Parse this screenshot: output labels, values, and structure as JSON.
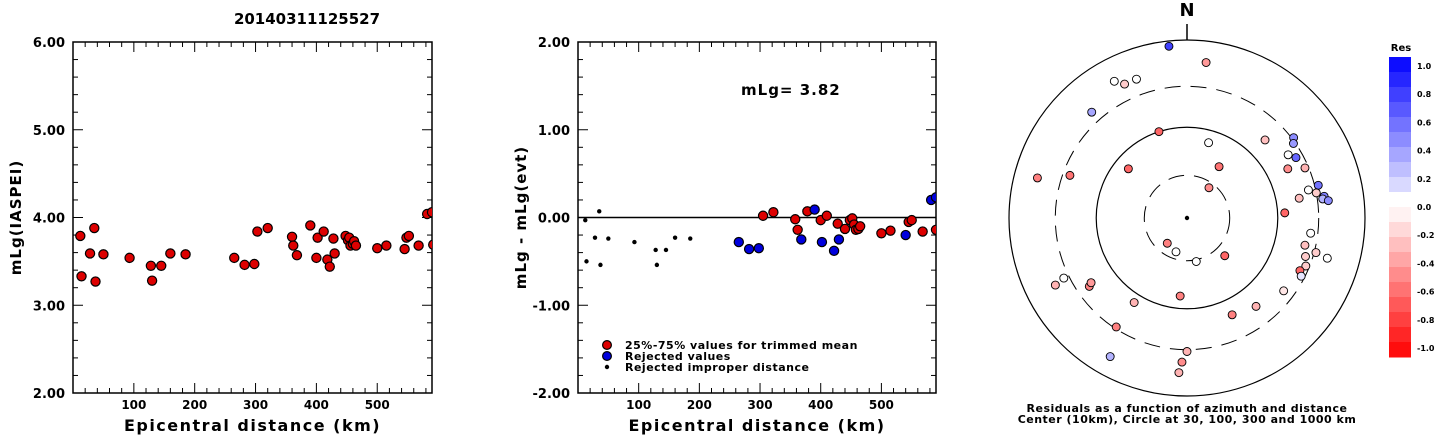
{
  "title": "20140311125527",
  "chart_data": [
    {
      "type": "scatter",
      "id": "magnitude-vs-distance",
      "xlabel": "Epicentral distance (km)",
      "ylabel": "mLg(IASPEI)",
      "xlim": [
        0,
        590
      ],
      "ylim": [
        2.0,
        6.0
      ],
      "xticks": [
        100,
        200,
        300,
        400,
        500
      ],
      "yticks": [
        "2.00",
        "3.00",
        "4.00",
        "5.00",
        "6.00"
      ],
      "series": [
        {
          "color": "#dd0000",
          "points": [
            [
              12,
              3.79
            ],
            [
              14,
              3.33
            ],
            [
              28,
              3.59
            ],
            [
              35,
              3.88
            ],
            [
              37,
              3.27
            ],
            [
              50,
              3.58
            ],
            [
              93,
              3.54
            ],
            [
              128,
              3.45
            ],
            [
              130,
              3.28
            ],
            [
              145,
              3.45
            ],
            [
              160,
              3.59
            ],
            [
              185,
              3.58
            ],
            [
              265,
              3.54
            ],
            [
              282,
              3.46
            ],
            [
              298,
              3.47
            ],
            [
              303,
              3.84
            ],
            [
              320,
              3.88
            ],
            [
              360,
              3.78
            ],
            [
              362,
              3.68
            ],
            [
              368,
              3.57
            ],
            [
              390,
              3.91
            ],
            [
              400,
              3.54
            ],
            [
              402,
              3.77
            ],
            [
              412,
              3.84
            ],
            [
              418,
              3.52
            ],
            [
              422,
              3.44
            ],
            [
              428,
              3.76
            ],
            [
              430,
              3.59
            ],
            [
              448,
              3.79
            ],
            [
              452,
              3.74
            ],
            [
              454,
              3.77
            ],
            [
              456,
              3.68
            ],
            [
              460,
              3.7
            ],
            [
              462,
              3.73
            ],
            [
              465,
              3.68
            ],
            [
              500,
              3.65
            ],
            [
              515,
              3.68
            ],
            [
              545,
              3.64
            ],
            [
              548,
              3.77
            ],
            [
              552,
              3.79
            ],
            [
              568,
              3.68
            ],
            [
              582,
              4.04
            ],
            [
              590,
              4.06
            ],
            [
              592,
              3.69
            ]
          ]
        }
      ]
    },
    {
      "type": "scatter",
      "id": "residual-vs-distance",
      "xlabel": "Epicentral distance (km)",
      "ylabel": "mLg - mLg(evt)",
      "xlim": [
        0,
        590
      ],
      "ylim": [
        -2.0,
        2.0
      ],
      "xticks": [
        100,
        200,
        300,
        400,
        500
      ],
      "yticks": [
        "-2.00",
        "-1.00",
        "0.00",
        "1.00",
        "2.00"
      ],
      "annotation": "mLg= 3.82",
      "reference_line": 0.0,
      "legend": [
        {
          "label": "25%-75% values for trimmed mean",
          "color": "#dd0000",
          "marker": "circle"
        },
        {
          "label": "Rejected values",
          "color": "#0000dd",
          "marker": "circle"
        },
        {
          "label": "Rejected improper distance",
          "color": "#000000",
          "marker": "dot"
        }
      ],
      "series": [
        {
          "name": "25%-75% values for trimmed mean",
          "color": "#dd0000",
          "points": [
            [
              305,
              0.02
            ],
            [
              322,
              0.06
            ],
            [
              358,
              -0.02
            ],
            [
              362,
              -0.14
            ],
            [
              378,
              0.07
            ],
            [
              400,
              -0.03
            ],
            [
              410,
              0.02
            ],
            [
              428,
              -0.07
            ],
            [
              440,
              -0.13
            ],
            [
              448,
              -0.03
            ],
            [
              452,
              -0.01
            ],
            [
              455,
              -0.08
            ],
            [
              458,
              -0.14
            ],
            [
              462,
              -0.13
            ],
            [
              465,
              -0.1
            ],
            [
              500,
              -0.18
            ],
            [
              515,
              -0.15
            ],
            [
              545,
              -0.05
            ],
            [
              550,
              -0.03
            ],
            [
              568,
              -0.16
            ],
            [
              590,
              -0.14
            ]
          ]
        },
        {
          "name": "Rejected values",
          "color": "#0000dd",
          "points": [
            [
              265,
              -0.28
            ],
            [
              282,
              -0.36
            ],
            [
              298,
              -0.35
            ],
            [
              368,
              -0.25
            ],
            [
              390,
              0.09
            ],
            [
              402,
              -0.28
            ],
            [
              422,
              -0.38
            ],
            [
              430,
              -0.25
            ],
            [
              540,
              -0.2
            ],
            [
              582,
              0.2
            ],
            [
              590,
              0.23
            ]
          ]
        },
        {
          "name": "Rejected improper distance",
          "color": "#000000",
          "points": [
            [
              12,
              -0.03
            ],
            [
              14,
              -0.5
            ],
            [
              28,
              -0.23
            ],
            [
              35,
              0.07
            ],
            [
              37,
              -0.54
            ],
            [
              50,
              -0.24
            ],
            [
              93,
              -0.28
            ],
            [
              128,
              -0.37
            ],
            [
              130,
              -0.54
            ],
            [
              145,
              -0.37
            ],
            [
              160,
              -0.23
            ],
            [
              185,
              -0.24
            ]
          ]
        }
      ]
    },
    {
      "type": "scatter",
      "id": "azimuth-residual-map",
      "north_label": "N",
      "caption_line1": "Residuals as a function of azimuth and distance",
      "caption_line2": "Center (10km), Circle at 30, 100, 300 and 1000 km",
      "colorbar": {
        "title": "Res",
        "ticks": [
          "1.0",
          "0.8",
          "0.6",
          "0.4",
          "0.2",
          "0.0",
          "-0.2",
          "-0.4",
          "-0.6",
          "-0.8",
          "-1.0"
        ],
        "range": [
          -1.0,
          1.0
        ],
        "colors": {
          "positive": "#0000ff",
          "zero": "#ffffff",
          "negative": "#ff0000"
        }
      },
      "rings_km": [
        30,
        100,
        300,
        1000
      ],
      "stations": [
        {
          "az": 16,
          "r": 0.44,
          "res": 0.0
        },
        {
          "az": 32,
          "r": 0.34,
          "res": -0.55
        },
        {
          "az": 36,
          "r": 0.21,
          "res": -0.45
        },
        {
          "az": 45,
          "r": 0.62,
          "res": -0.25
        },
        {
          "az": 58,
          "r": 0.67,
          "res": 0.0
        },
        {
          "az": 53,
          "r": 0.75,
          "res": 0.45
        },
        {
          "az": 55,
          "r": 0.73,
          "res": 0.4
        },
        {
          "az": 64,
          "r": 0.63,
          "res": -0.45
        },
        {
          "az": 61,
          "r": 0.7,
          "res": 0.6
        },
        {
          "az": 67,
          "r": 0.72,
          "res": -0.3
        },
        {
          "az": 76,
          "r": 0.76,
          "res": 0.55
        },
        {
          "az": 77,
          "r": 0.7,
          "res": 0.0
        },
        {
          "az": 79,
          "r": 0.74,
          "res": -0.2
        },
        {
          "az": 81,
          "r": 0.78,
          "res": 0.5
        },
        {
          "az": 82,
          "r": 0.77,
          "res": 0.3
        },
        {
          "az": 83,
          "r": 0.8,
          "res": 0.45
        },
        {
          "az": 87,
          "r": 0.55,
          "res": -0.6
        },
        {
          "az": 80,
          "r": 0.64,
          "res": -0.25
        },
        {
          "az": 97,
          "r": 0.7,
          "res": 0.0
        },
        {
          "az": 103,
          "r": 0.68,
          "res": -0.25
        },
        {
          "az": 105,
          "r": 0.75,
          "res": -0.2
        },
        {
          "az": 106,
          "r": 0.82,
          "res": 0.0
        },
        {
          "az": 108,
          "r": 0.7,
          "res": -0.2
        },
        {
          "az": 112,
          "r": 0.72,
          "res": -0.2
        },
        {
          "az": 115,
          "r": 0.7,
          "res": -0.6
        },
        {
          "az": 117,
          "r": 0.72,
          "res": 0.1
        },
        {
          "az": 127,
          "r": 0.68,
          "res": -0.1
        },
        {
          "az": 142,
          "r": 0.63,
          "res": -0.3
        },
        {
          "az": 155,
          "r": 0.6,
          "res": -0.5
        },
        {
          "az": 135,
          "r": 0.3,
          "res": -0.6
        },
        {
          "az": 168,
          "r": 0.25,
          "res": 0.0
        },
        {
          "az": 185,
          "r": 0.44,
          "res": -0.5
        },
        {
          "az": 180,
          "r": 0.75,
          "res": -0.3
        },
        {
          "az": 182,
          "r": 0.81,
          "res": -0.45
        },
        {
          "az": 183,
          "r": 0.87,
          "res": -0.3
        },
        {
          "az": 198,
          "r": 0.2,
          "res": 0.0
        },
        {
          "az": 218,
          "r": 0.18,
          "res": -0.5
        },
        {
          "az": 212,
          "r": 0.56,
          "res": -0.3
        },
        {
          "az": 213,
          "r": 0.73,
          "res": -0.5
        },
        {
          "az": 209,
          "r": 0.89,
          "res": 0.3
        },
        {
          "az": 235,
          "r": 0.67,
          "res": -0.5
        },
        {
          "az": 236,
          "r": 0.65,
          "res": -0.4
        },
        {
          "az": 243,
          "r": 0.83,
          "res": -0.3
        },
        {
          "az": 244,
          "r": 0.77,
          "res": 0.0
        },
        {
          "az": 290,
          "r": 0.7,
          "res": -0.55
        },
        {
          "az": 285,
          "r": 0.87,
          "res": -0.5
        },
        {
          "az": 310,
          "r": 0.43,
          "res": -0.6
        },
        {
          "az": 318,
          "r": 0.8,
          "res": 0.35
        },
        {
          "az": 332,
          "r": 0.87,
          "res": 0.0
        },
        {
          "az": 335,
          "r": 0.83,
          "res": -0.2
        },
        {
          "az": 342,
          "r": 0.51,
          "res": -0.6
        },
        {
          "az": 340,
          "r": 0.83,
          "res": 0.0
        },
        {
          "az": 7,
          "r": 0.88,
          "res": -0.4
        },
        {
          "az": 354,
          "r": 0.97,
          "res": 0.75
        }
      ]
    }
  ]
}
